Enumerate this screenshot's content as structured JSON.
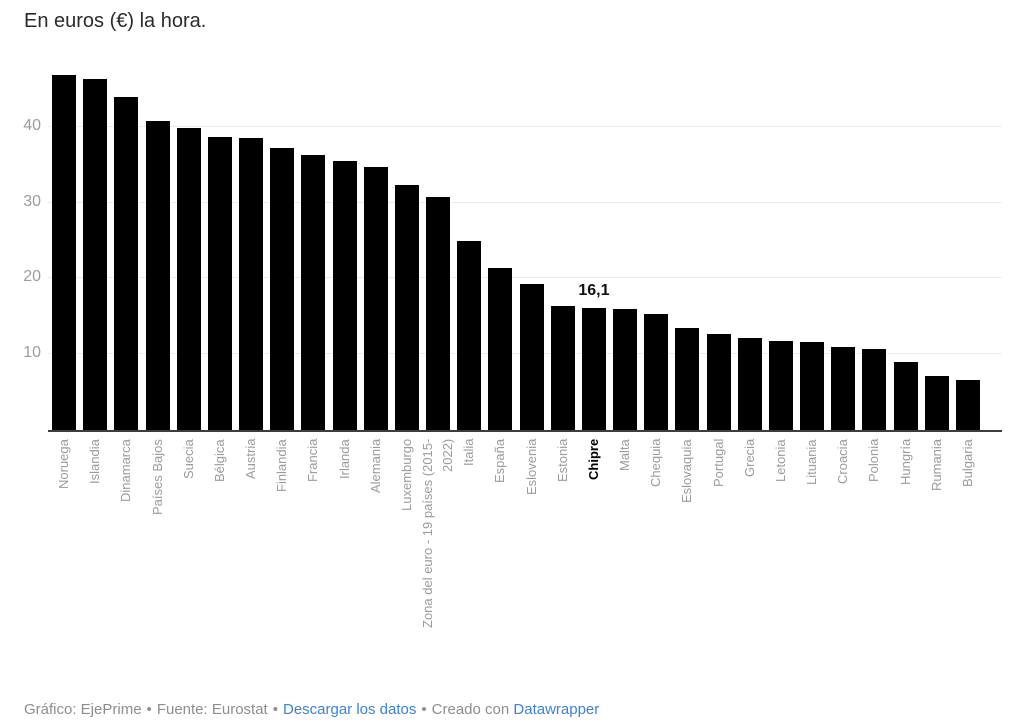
{
  "title": "En euros (€) la hora.",
  "chart_data": {
    "type": "bar",
    "title": "En euros (€) la hora.",
    "ylabel": "",
    "xlabel": "",
    "ylim": [
      0,
      48.4
    ],
    "yticks": [
      10,
      20,
      30,
      40
    ],
    "grid": true,
    "bar_color": "#000000",
    "axis_text_color": "#9b9b9b",
    "highlight_index": 17,
    "categories": [
      "Noruega",
      "Islandia",
      "Dinamarca",
      "Países Bajos",
      "Suecia",
      "Bélgica",
      "Austria",
      "Finlandia",
      "Francia",
      "Irlanda",
      "Alemania",
      "Luxemburgo",
      "Zona del euro - 19 países (2015-\n2022)",
      "Italia",
      "España",
      "Eslovenia",
      "Estonia",
      "Chipre",
      "Malta",
      "Chequia",
      "Eslovaquia",
      "Portugal",
      "Grecia",
      "Letonia",
      "Lituania",
      "Croacia",
      "Polonia",
      "Hungría",
      "Rumania",
      "Bulgaria"
    ],
    "values": [
      46.8,
      46.3,
      43.9,
      40.7,
      39.8,
      38.7,
      38.5,
      37.2,
      36.3,
      35.5,
      34.7,
      32.3,
      30.7,
      24.9,
      21.4,
      19.3,
      16.4,
      16.1,
      16.0,
      15.3,
      13.4,
      12.7,
      12.1,
      11.7,
      11.6,
      10.9,
      10.7,
      9.0,
      7.1,
      6.6
    ],
    "data_labels": {
      "17": "16,1"
    },
    "legend": "none"
  },
  "footer": {
    "byline": "Gráfico: EjePrime",
    "separator": "•",
    "source": "Fuente: Eurostat",
    "download_link": "Descargar los datos",
    "created_with": "Creado con",
    "tool_link": "Datawrapper",
    "text_color": "#8d8d8d",
    "link_color": "#3a82d6"
  }
}
